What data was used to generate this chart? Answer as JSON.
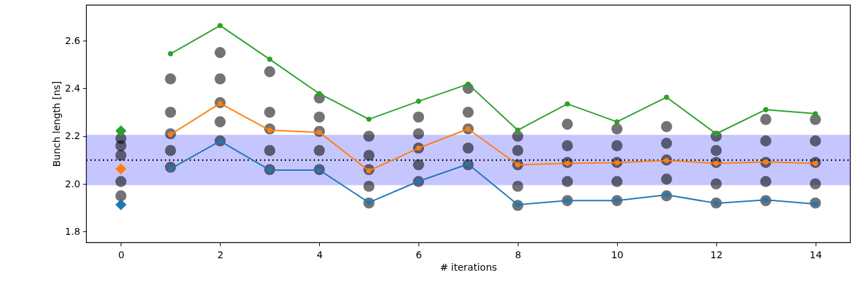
{
  "chart_data": {
    "type": "line",
    "xlabel": "# iterations",
    "ylabel": "Bunch length [ns]",
    "xlim": [
      -0.7,
      14.7
    ],
    "xticks": [
      0,
      2,
      4,
      6,
      8,
      10,
      12,
      14
    ],
    "ylim": [
      1.755,
      2.75
    ],
    "yticks": [
      {
        "value": 1.8,
        "label": "1.8"
      },
      {
        "value": 2.0,
        "label": "2.0"
      },
      {
        "value": 2.2,
        "label": "2.2"
      },
      {
        "value": 2.4,
        "label": "2.4"
      },
      {
        "value": 2.6,
        "label": "2.6"
      }
    ],
    "grid": false,
    "bands": [
      {
        "axis": "y",
        "from": 1.995,
        "to": 2.205,
        "color": "#0000ff"
      }
    ],
    "ref_lines": [
      {
        "axis": "y",
        "value": 2.1,
        "color": "#000000",
        "line_style": "dotted"
      }
    ],
    "series": [
      {
        "type": "scatter",
        "color": "#000000",
        "marker": "circle",
        "x": [
          0,
          0,
          0,
          0,
          0,
          1,
          1,
          1,
          1,
          1,
          2,
          2,
          2,
          2,
          2,
          3,
          3,
          3,
          3,
          3,
          4,
          4,
          4,
          4,
          4,
          5,
          5,
          5,
          5,
          5,
          6,
          6,
          6,
          6,
          6,
          7,
          7,
          7,
          7,
          7,
          8,
          8,
          8,
          8,
          8,
          9,
          9,
          9,
          9,
          9,
          10,
          10,
          10,
          10,
          10,
          11,
          11,
          11,
          11,
          11,
          12,
          12,
          12,
          12,
          12,
          13,
          13,
          13,
          13,
          13,
          14,
          14,
          14,
          14,
          14
        ],
        "values": [
          1.95,
          2.01,
          2.12,
          2.16,
          2.19,
          2.07,
          2.14,
          2.21,
          2.3,
          2.44,
          2.18,
          2.26,
          2.34,
          2.44,
          2.55,
          2.06,
          2.14,
          2.23,
          2.3,
          2.47,
          2.06,
          2.14,
          2.22,
          2.28,
          2.36,
          1.92,
          1.99,
          2.06,
          2.12,
          2.2,
          2.01,
          2.08,
          2.15,
          2.21,
          2.28,
          2.08,
          2.15,
          2.23,
          2.3,
          2.4,
          1.91,
          1.99,
          2.08,
          2.14,
          2.2,
          1.93,
          2.01,
          2.09,
          2.16,
          2.25,
          1.93,
          2.01,
          2.09,
          2.16,
          2.23,
          1.95,
          2.02,
          2.1,
          2.17,
          2.24,
          1.92,
          2.0,
          2.09,
          2.14,
          2.2,
          1.93,
          2.01,
          2.09,
          2.18,
          2.27,
          1.92,
          2.0,
          2.09,
          2.18,
          2.27
        ]
      },
      {
        "color": "#1f77b4",
        "marker": "circle",
        "line_style": "solid",
        "x": [
          1,
          2,
          3,
          4,
          5,
          6,
          7,
          8,
          9,
          10,
          11,
          12,
          13,
          14
        ],
        "values": [
          2.063,
          2.179,
          2.058,
          2.058,
          1.922,
          2.011,
          2.083,
          1.913,
          1.93,
          1.93,
          1.954,
          1.919,
          1.933,
          1.916
        ]
      },
      {
        "color": "#ff7f0e",
        "marker": "circle",
        "line_style": "solid",
        "x": [
          1,
          2,
          3,
          4,
          5,
          6,
          7,
          8,
          9,
          10,
          11,
          12,
          13,
          14
        ],
        "values": [
          2.207,
          2.337,
          2.225,
          2.216,
          2.055,
          2.15,
          2.23,
          2.08,
          2.086,
          2.089,
          2.098,
          2.086,
          2.092,
          2.086
        ]
      },
      {
        "color": "#2ca02c",
        "marker": "circle",
        "line_style": "solid",
        "x": [
          1,
          2,
          3,
          4,
          5,
          6,
          7,
          8,
          9,
          10,
          11,
          12,
          13,
          14
        ],
        "values": [
          2.545,
          2.663,
          2.522,
          2.378,
          2.271,
          2.346,
          2.418,
          2.225,
          2.335,
          2.26,
          2.363,
          2.21,
          2.311,
          2.294
        ]
      },
      {
        "type": "scatter",
        "color": "#1f77b4",
        "marker": "diamond",
        "x": [
          0
        ],
        "values": [
          1.913
        ]
      },
      {
        "type": "scatter",
        "color": "#ff7f0e",
        "marker": "diamond",
        "x": [
          0
        ],
        "values": [
          2.063
        ]
      },
      {
        "type": "scatter",
        "color": "#2ca02c",
        "marker": "diamond",
        "x": [
          0
        ],
        "values": [
          2.222
        ]
      }
    ]
  }
}
